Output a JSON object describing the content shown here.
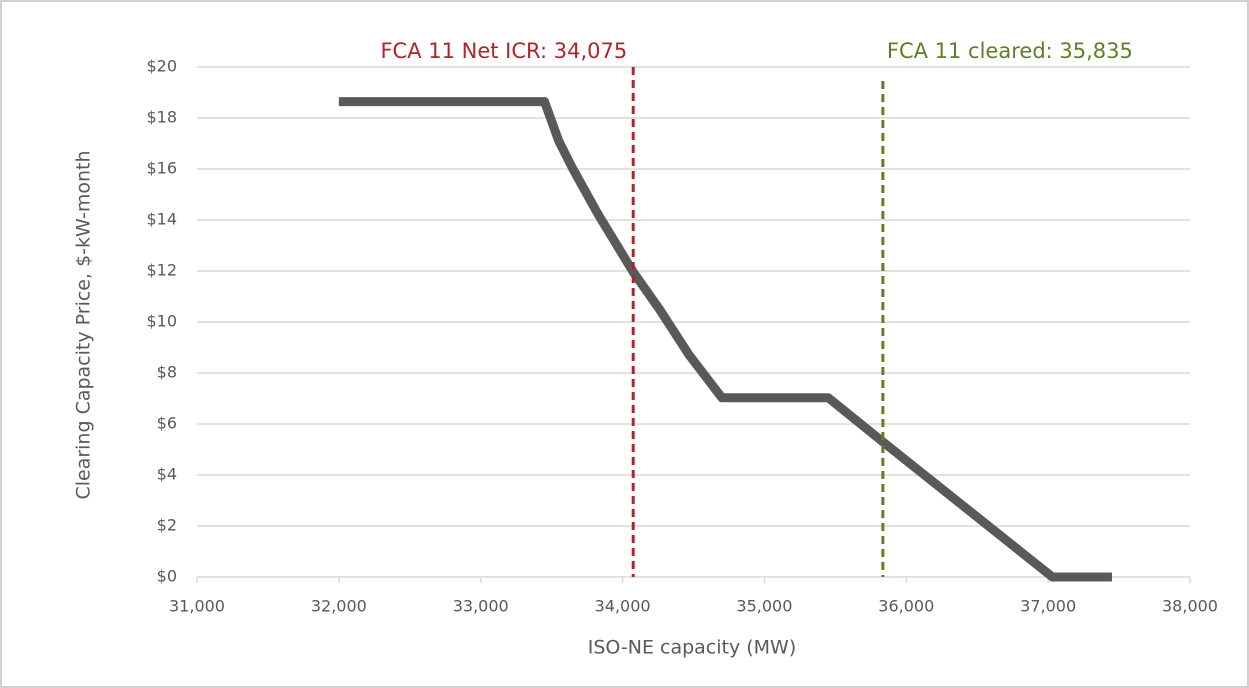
{
  "chart_data": {
    "type": "line",
    "xlabel": "ISO-NE capacity (MW)",
    "ylabel": "Clearing Capacity Price, $-kW-month",
    "x": [
      32000,
      33450,
      33550,
      33650,
      33830,
      34075,
      34260,
      34470,
      34700,
      35450,
      35835,
      37030,
      37450
    ],
    "values": [
      18.64,
      18.64,
      17.1,
      16.0,
      14.2,
      11.96,
      10.5,
      8.7,
      7.03,
      7.03,
      5.3,
      0,
      0
    ],
    "color": "#595959",
    "xlim": [
      31000,
      38000
    ],
    "xticks": [
      {
        "value": 31000,
        "label": "31,000"
      },
      {
        "value": 32000,
        "label": "32,000"
      },
      {
        "value": 33000,
        "label": "33,000"
      },
      {
        "value": 34000,
        "label": "34,000"
      },
      {
        "value": 35000,
        "label": "35,000"
      },
      {
        "value": 36000,
        "label": "36,000"
      },
      {
        "value": 37000,
        "label": "37,000"
      },
      {
        "value": 38000,
        "label": "38,000"
      }
    ],
    "ylim": [
      0,
      20
    ],
    "yticks": [
      {
        "value": 0,
        "label": "$0"
      },
      {
        "value": 2,
        "label": "$2"
      },
      {
        "value": 4,
        "label": "$4"
      },
      {
        "value": 6,
        "label": "$6"
      },
      {
        "value": 8,
        "label": "$8"
      },
      {
        "value": 10,
        "label": "$10"
      },
      {
        "value": 12,
        "label": "$12"
      },
      {
        "value": 14,
        "label": "$14"
      },
      {
        "value": 16,
        "label": "$16"
      },
      {
        "value": 18,
        "label": "$18"
      },
      {
        "value": 20,
        "label": "$20"
      }
    ],
    "grid": true,
    "vlines": [
      {
        "x": 34075,
        "label": "FCA 11 Net ICR: 34,075",
        "color": "#b0242b",
        "anchor": "end"
      },
      {
        "x": 35835,
        "label": "FCA 11 cleared: 35,835",
        "color": "#5f7f27",
        "anchor": "start"
      }
    ]
  }
}
